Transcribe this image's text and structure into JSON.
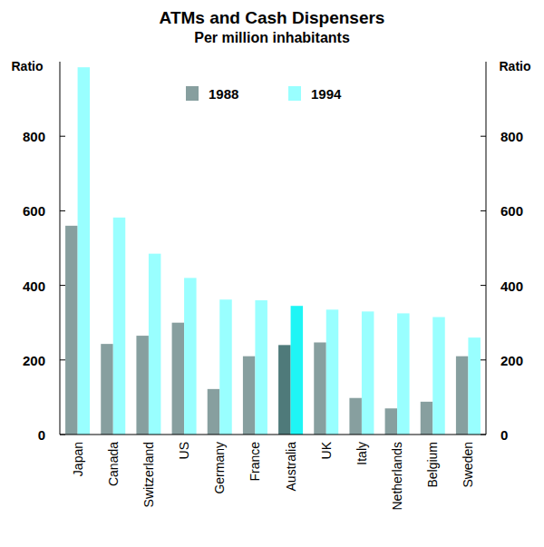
{
  "chart_data": {
    "type": "bar",
    "title": "ATMs and Cash Dispensers",
    "subtitle": "Per million inhabitants",
    "y_label": "Ratio",
    "y2_label": "Ratio",
    "categories": [
      "Japan",
      "Canada",
      "Switzerland",
      "US",
      "Germany",
      "France",
      "Australia",
      "UK",
      "Italy",
      "Netherlands",
      "Belgium",
      "Sweden"
    ],
    "series": [
      {
        "name": "1988",
        "color": "#879f9f",
        "colors": [
          "#879f9f",
          "#879f9f",
          "#879f9f",
          "#879f9f",
          "#879f9f",
          "#879f9f",
          "#4f7a7a",
          "#879f9f",
          "#879f9f",
          "#879f9f",
          "#879f9f",
          "#879f9f"
        ],
        "values": [
          560,
          243,
          265,
          300,
          122,
          210,
          240,
          247,
          98,
          70,
          88,
          210
        ]
      },
      {
        "name": "1994",
        "color": "#99ffff",
        "colors": [
          "#99ffff",
          "#99ffff",
          "#99ffff",
          "#99ffff",
          "#99ffff",
          "#99ffff",
          "#1ff5f5",
          "#99ffff",
          "#99ffff",
          "#99ffff",
          "#99ffff",
          "#99ffff"
        ],
        "values": [
          985,
          582,
          485,
          420,
          362,
          360,
          345,
          335,
          330,
          325,
          315,
          260
        ]
      }
    ],
    "ylim": [
      0,
      1000
    ],
    "yticks": [
      0,
      200,
      400,
      600,
      800
    ],
    "y2lim": [
      0,
      1000
    ],
    "y2ticks": [
      0,
      200,
      400,
      600,
      800
    ],
    "grid": false,
    "legend": "top"
  }
}
